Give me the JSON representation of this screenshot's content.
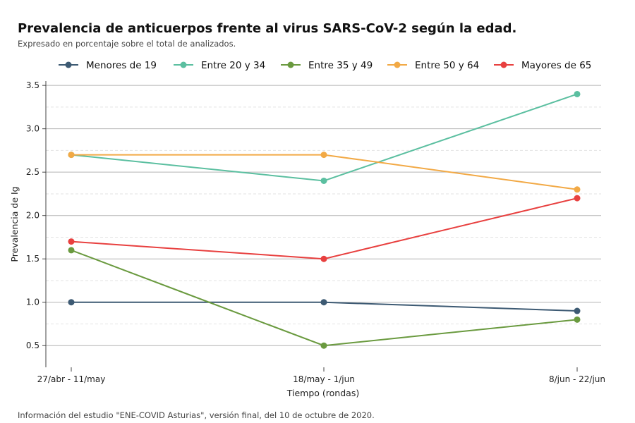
{
  "header": {
    "title": "Prevalencia de anticuerpos frente al virus SARS-CoV-2 según la edad.",
    "subtitle": "Expresado en porcentaje sobre el total de analizados."
  },
  "footer": {
    "note": "Información del estudio \"ENE-COVID Asturias\", versión final, del 10 de octubre de 2020."
  },
  "chart_data": {
    "type": "line",
    "title": "Prevalencia de anticuerpos frente al virus SARS-CoV-2 según la edad.",
    "xlabel": "Tiempo (rondas)",
    "ylabel": "Prevalencia de Ig",
    "categories": [
      "27/abr - 11/may",
      "18/may - 1/jun",
      "8/jun - 22/jun"
    ],
    "ylim": [
      0.25,
      3.55
    ],
    "yticks": [
      0.5,
      1.0,
      1.5,
      2.0,
      2.5,
      3.0,
      3.5
    ],
    "ytick_labels": [
      "0.5",
      "1.0",
      "1.5",
      "2.0",
      "2.5",
      "3.0",
      "3.5"
    ],
    "grid": true,
    "legend_position": "top",
    "series": [
      {
        "name": "Menores de 19",
        "color": "#3d5a73",
        "values": [
          1.0,
          1.0,
          0.9
        ]
      },
      {
        "name": "Entre 20 y 34",
        "color": "#5bbfa0",
        "values": [
          2.7,
          2.4,
          3.4
        ]
      },
      {
        "name": "Entre 35 y 49",
        "color": "#6a9a3f",
        "values": [
          1.6,
          0.5,
          0.8
        ]
      },
      {
        "name": "Entre 50 y 64",
        "color": "#f2a945",
        "values": [
          2.7,
          2.7,
          2.3
        ]
      },
      {
        "name": "Mayores de 65",
        "color": "#e8403f",
        "values": [
          1.7,
          1.5,
          2.2
        ]
      }
    ]
  }
}
